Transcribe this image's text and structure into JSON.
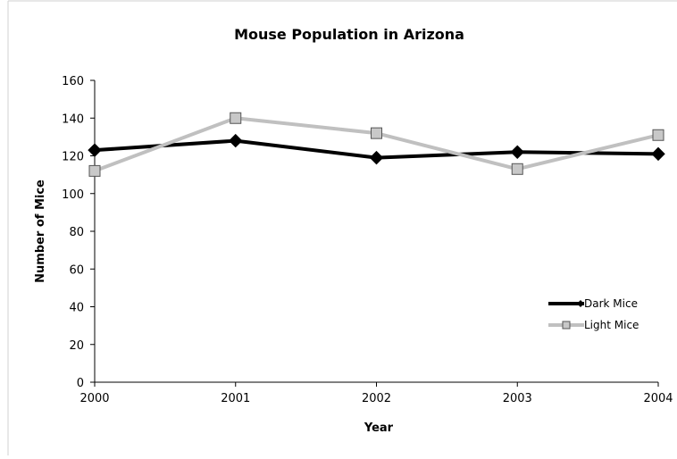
{
  "chart_data": {
    "type": "line",
    "title": "Mouse Population in Arizona",
    "xlabel": "Year",
    "ylabel": "Number of Mice",
    "x": [
      "2000",
      "2001",
      "2002",
      "2003",
      "2004"
    ],
    "ylim": [
      0,
      160
    ],
    "yticks": [
      "0",
      "20",
      "40",
      "60",
      "80",
      "100",
      "120",
      "140",
      "160"
    ],
    "grid": false,
    "legend_position": "bottom-right",
    "series": [
      {
        "name": "Dark Mice",
        "values": [
          123,
          128,
          119,
          122,
          121
        ],
        "color": "#000000",
        "marker": "diamond"
      },
      {
        "name": "Light Mice",
        "values": [
          112,
          140,
          132,
          113,
          131
        ],
        "color": "#c0c0c0",
        "marker": "square"
      }
    ]
  }
}
